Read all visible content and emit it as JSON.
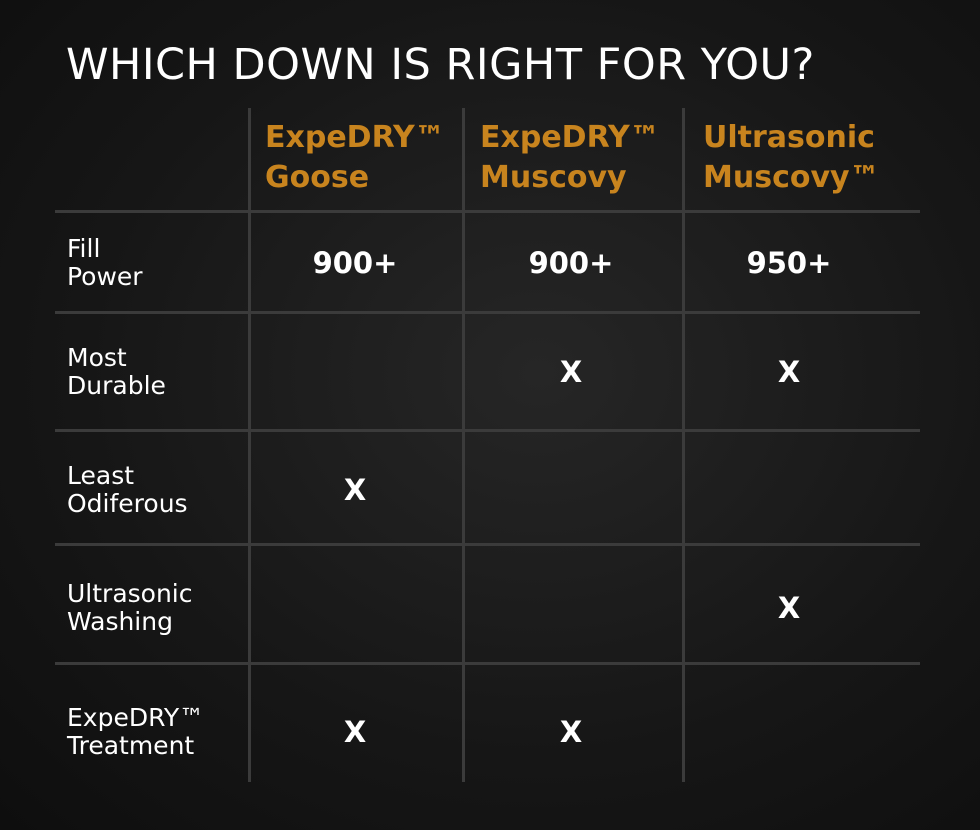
{
  "title": "WHICH DOWN IS RIGHT FOR YOU?",
  "table": {
    "headers": [
      [
        "ExpeDRY™",
        "Goose"
      ],
      [
        "ExpeDRY™",
        "Muscovy"
      ],
      [
        "Ultrasonic",
        "Muscovy™"
      ]
    ],
    "rows": [
      {
        "label": [
          "Fill",
          "Power"
        ],
        "cells": [
          "900+",
          "900+",
          "950+"
        ]
      },
      {
        "label": [
          "Most",
          "Durable"
        ],
        "cells": [
          null,
          "X",
          "X"
        ]
      },
      {
        "label": [
          "Least",
          "Odiferous"
        ],
        "cells": [
          "X",
          null,
          null
        ]
      },
      {
        "label": [
          "Ultrasonic",
          "Washing"
        ],
        "cells": [
          null,
          null,
          "X"
        ]
      },
      {
        "label": [
          "ExpeDRY™",
          "Treatment"
        ],
        "cells": [
          "X",
          "X",
          null
        ]
      }
    ]
  }
}
